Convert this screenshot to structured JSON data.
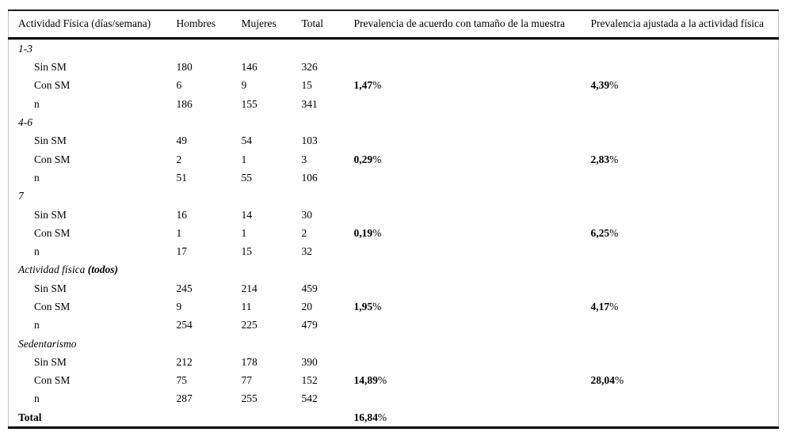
{
  "page": {
    "background": "#ffffff",
    "text_color": "#000000"
  },
  "table": {
    "percent_sign": "%",
    "columns": [
      "Actividad Física (días/semana)",
      "Hombres",
      "Mujeres",
      "Total",
      "Prevalencia de acuerdo con tamaño de la muestra",
      "Prevalencia ajustada a la actividad física"
    ],
    "rows": [
      {
        "type": "group",
        "label": "1-3"
      },
      {
        "type": "sub",
        "label": "Sin SM",
        "h": "180",
        "m": "146",
        "t": "326"
      },
      {
        "type": "sub",
        "label": "Con SM",
        "h": "6",
        "m": "9",
        "t": "15",
        "p1": "1,47",
        "p2": "4,39"
      },
      {
        "type": "sub",
        "label": "n",
        "h": "186",
        "m": "155",
        "t": "341"
      },
      {
        "type": "group",
        "label": "4-6"
      },
      {
        "type": "sub",
        "label": "Sin SM",
        "h": "49",
        "m": "54",
        "t": "103"
      },
      {
        "type": "sub",
        "label": "Con SM",
        "h": "2",
        "m": "1",
        "t": "3",
        "p1": "0,29",
        "p2": "2,83"
      },
      {
        "type": "sub",
        "label": "n",
        "h": "51",
        "m": "55",
        "t": "106"
      },
      {
        "type": "group",
        "label": "7"
      },
      {
        "type": "sub",
        "label": "Sin SM",
        "h": "16",
        "m": "14",
        "t": "30"
      },
      {
        "type": "sub",
        "label": "Con SM",
        "h": "1",
        "m": "1",
        "t": "2",
        "p1": "0,19",
        "p2": "6,25"
      },
      {
        "type": "sub",
        "label": "n",
        "h": "17",
        "m": "15",
        "t": "32"
      },
      {
        "type": "group",
        "label": "Actividad física ",
        "label_bold": "(todos)"
      },
      {
        "type": "sub",
        "label": "Sin SM",
        "h": "245",
        "m": "214",
        "t": "459"
      },
      {
        "type": "sub",
        "label": "Con SM",
        "h": "9",
        "m": "11",
        "t": "20",
        "p1": "1,95",
        "p2": "4,17"
      },
      {
        "type": "sub",
        "label": "n",
        "h": "254",
        "m": "225",
        "t": "479"
      },
      {
        "type": "group",
        "label": "Sedentarismo"
      },
      {
        "type": "sub",
        "label": "Sin SM",
        "h": "212",
        "m": "178",
        "t": "390"
      },
      {
        "type": "sub",
        "label": "Con SM",
        "h": "75",
        "m": "77",
        "t": "152",
        "p1": "14,89",
        "p2": "28,04"
      },
      {
        "type": "sub",
        "label": "n",
        "h": "287",
        "m": "255",
        "t": "542"
      },
      {
        "type": "total",
        "label": "Total",
        "p1": "16,84"
      }
    ]
  }
}
